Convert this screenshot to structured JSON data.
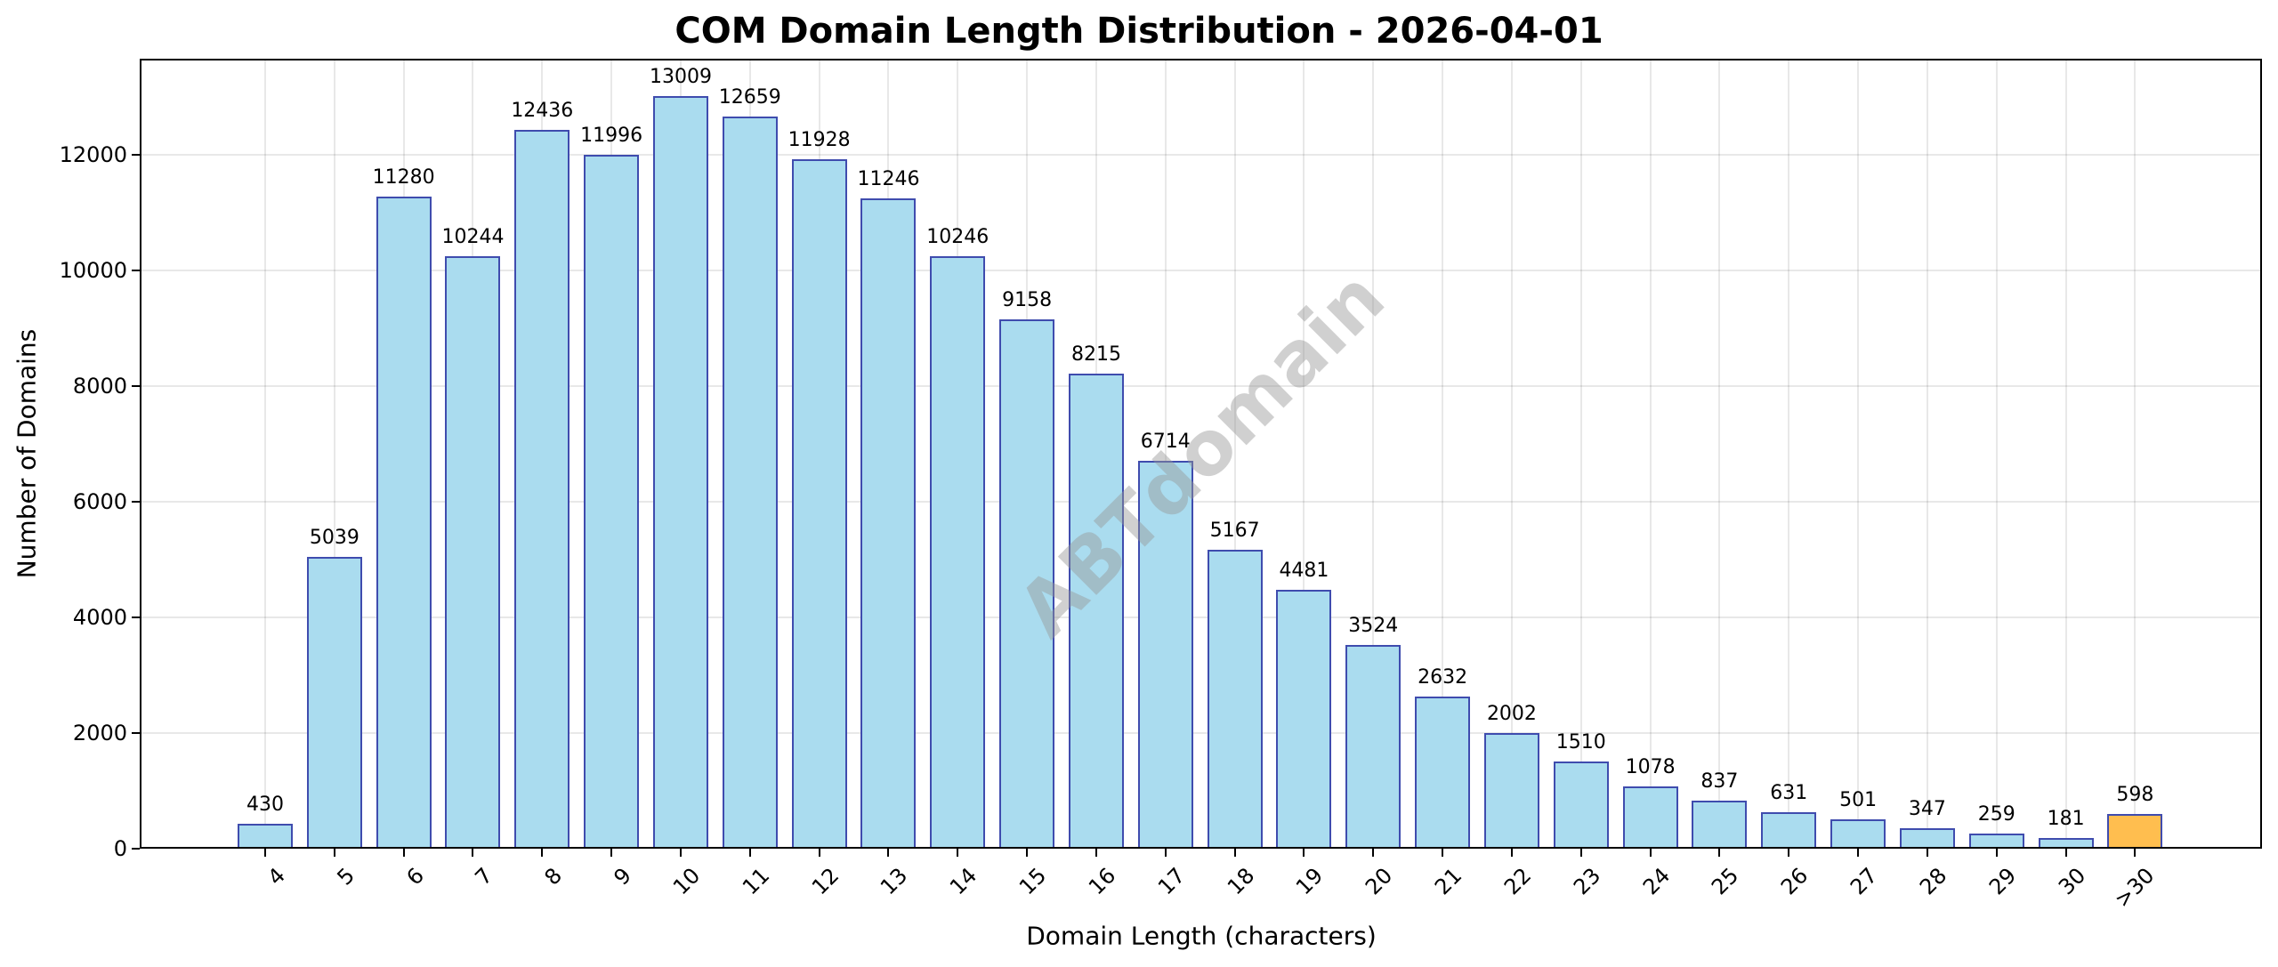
{
  "chart_data": {
    "type": "bar",
    "title": "COM Domain Length Distribution - 2026-04-01",
    "xlabel": "Domain Length (characters)",
    "ylabel": "Number of Domains",
    "categories": [
      "4",
      "5",
      "6",
      "7",
      "8",
      "9",
      "10",
      "11",
      "12",
      "13",
      "14",
      "15",
      "16",
      "17",
      "18",
      "19",
      "20",
      "21",
      "22",
      "23",
      "24",
      "25",
      "26",
      "27",
      "28",
      "29",
      "30",
      ">30"
    ],
    "values": [
      430,
      5039,
      11280,
      10244,
      12436,
      11996,
      13009,
      12659,
      11928,
      11246,
      10246,
      9158,
      8215,
      6714,
      5167,
      4481,
      3524,
      2632,
      2002,
      1510,
      1078,
      837,
      631,
      501,
      347,
      259,
      181,
      598
    ],
    "ylim": [
      0,
      13660
    ],
    "yticks": [
      0,
      2000,
      4000,
      6000,
      8000,
      10000,
      12000
    ],
    "grid": true,
    "legend": null,
    "bar_labels": true,
    "colors": {
      "bar_fill": "#aadcef",
      "bar_edge": "#3f4cae",
      "highlight_fill": "#ffbe4f",
      "highlight_category": ">30"
    },
    "watermark": "ABTdomain"
  }
}
